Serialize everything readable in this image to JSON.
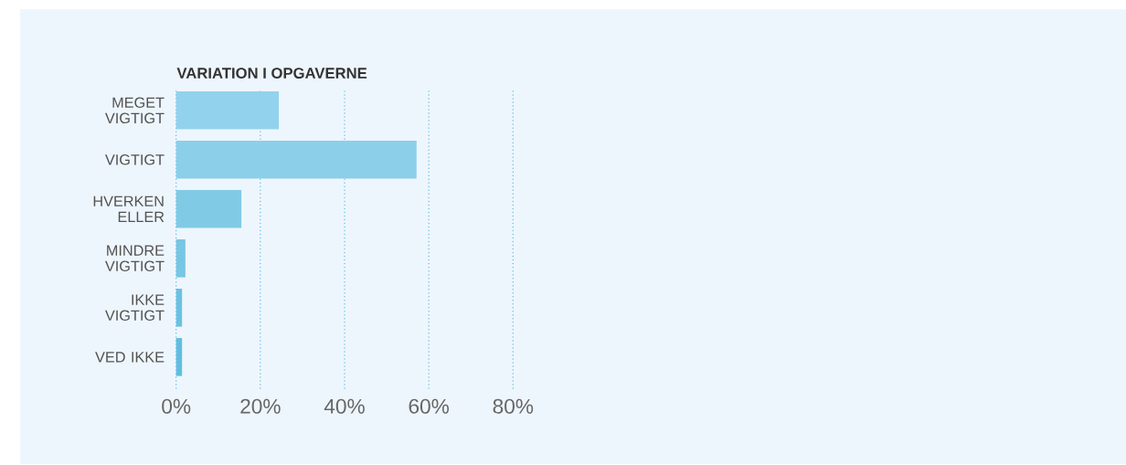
{
  "chart_data": {
    "type": "bar",
    "orientation": "horizontal",
    "title": "VARIATION I OPGAVERNE",
    "categories": [
      "MEGET VIGTIGT",
      "VIGTIGT",
      "HVERKEN ELLER",
      "MINDRE VIGTIGT",
      "IKKE VIGTIGT",
      "VED IKKE"
    ],
    "values": [
      24.4,
      57.1,
      15.5,
      2.2,
      1.4,
      1.4
    ],
    "colors": [
      "#93d2ec",
      "#8ccfe9",
      "#80cae6",
      "#77c6e4",
      "#6bc1e2",
      "#62bde0"
    ],
    "xlim": [
      0,
      80
    ],
    "xticks": [
      {
        "value": 0,
        "label": "0%"
      },
      {
        "value": 20,
        "label": "20%"
      },
      {
        "value": 40,
        "label": "40%"
      },
      {
        "value": 60,
        "label": "60%"
      },
      {
        "value": 80,
        "label": "80%"
      }
    ],
    "grid": "x"
  }
}
